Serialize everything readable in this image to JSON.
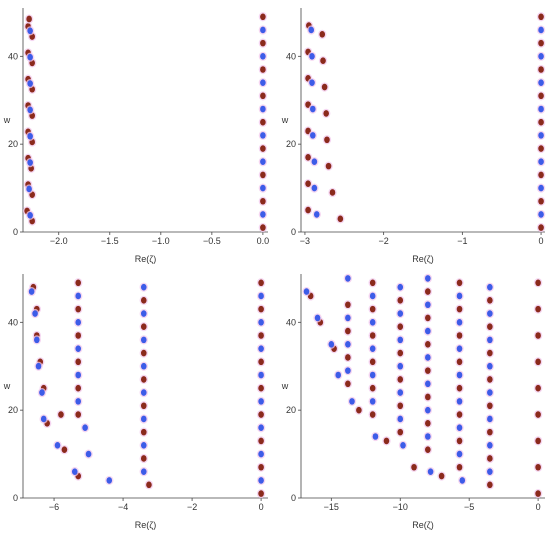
{
  "colors": {
    "red": "#8b2a1c",
    "blue": "#3d5ce8",
    "halo": "#f2c8ec",
    "axis": "#444444"
  },
  "chart_data": [
    {
      "type": "scatter",
      "title": "",
      "xlabel": "Re(ζ)",
      "ylabel": "w",
      "xlim": [
        -2.35,
        0.05
      ],
      "ylim": [
        0,
        51
      ],
      "xticks": [
        -2.0,
        -1.5,
        -1.0,
        -0.5,
        0.0
      ],
      "xtick_labels": [
        "−2.0",
        "−1.5",
        "−1.0",
        "−0.5",
        "0.0"
      ],
      "yticks": [
        0,
        20,
        40
      ],
      "ytick_labels": [
        "0",
        "20",
        "40"
      ],
      "grid": false,
      "series": [
        {
          "color": "red",
          "points": [
            [
              -2.26,
              2.5
            ],
            [
              -2.26,
              8.5
            ],
            [
              -2.27,
              14.5
            ],
            [
              -2.26,
              20.5
            ],
            [
              -2.26,
              26.5
            ],
            [
              -2.26,
              32.5
            ],
            [
              -2.26,
              38.5
            ],
            [
              -2.26,
              44.5
            ],
            [
              -2.31,
              4.8
            ],
            [
              -2.3,
              10.8
            ],
            [
              -2.3,
              16.8
            ],
            [
              -2.3,
              22.8
            ],
            [
              -2.3,
              28.8
            ],
            [
              -2.3,
              34.8
            ],
            [
              -2.3,
              40.8
            ],
            [
              -2.3,
              46.8
            ],
            [
              -2.29,
              48.5
            ],
            [
              0,
              1
            ],
            [
              0,
              7
            ],
            [
              0,
              13
            ],
            [
              0,
              19
            ],
            [
              0,
              25
            ],
            [
              0,
              31
            ],
            [
              0,
              37
            ],
            [
              0,
              43
            ],
            [
              0,
              49
            ]
          ]
        },
        {
          "color": "blue",
          "points": [
            [
              -2.28,
              3.8
            ],
            [
              -2.29,
              9.8
            ],
            [
              -2.28,
              15.8
            ],
            [
              -2.28,
              21.8
            ],
            [
              -2.28,
              27.8
            ],
            [
              -2.28,
              33.8
            ],
            [
              -2.28,
              39.8
            ],
            [
              -2.28,
              45.8
            ],
            [
              0,
              4
            ],
            [
              0,
              10
            ],
            [
              0,
              16
            ],
            [
              0,
              22
            ],
            [
              0,
              28
            ],
            [
              0,
              34
            ],
            [
              0,
              40
            ],
            [
              0,
              46
            ]
          ]
        }
      ]
    },
    {
      "type": "scatter",
      "title": "",
      "xlabel": "Re(ζ)",
      "ylabel": "w",
      "xlim": [
        -3.05,
        0.05
      ],
      "ylim": [
        0,
        51
      ],
      "xticks": [
        -3,
        -2,
        -1,
        0
      ],
      "xtick_labels": [
        "−3",
        "−2",
        "−1",
        "0"
      ],
      "yticks": [
        0,
        20,
        40
      ],
      "ytick_labels": [
        "0",
        "20",
        "40"
      ],
      "grid": false,
      "series": [
        {
          "color": "red",
          "points": [
            [
              -2.55,
              3
            ],
            [
              -2.65,
              9
            ],
            [
              -2.7,
              15
            ],
            [
              -2.72,
              21
            ],
            [
              -2.73,
              27
            ],
            [
              -2.75,
              33
            ],
            [
              -2.77,
              39
            ],
            [
              -2.78,
              45
            ],
            [
              -2.96,
              5
            ],
            [
              -2.96,
              11
            ],
            [
              -2.96,
              17
            ],
            [
              -2.96,
              23
            ],
            [
              -2.96,
              29
            ],
            [
              -2.96,
              35
            ],
            [
              -2.96,
              41
            ],
            [
              -2.95,
              47
            ],
            [
              0,
              1
            ],
            [
              0,
              7
            ],
            [
              0,
              13
            ],
            [
              0,
              19
            ],
            [
              0,
              25
            ],
            [
              0,
              31
            ],
            [
              0,
              37
            ],
            [
              0,
              43
            ],
            [
              0,
              49
            ]
          ]
        },
        {
          "color": "blue",
          "points": [
            [
              -2.85,
              4
            ],
            [
              -2.88,
              10
            ],
            [
              -2.88,
              16
            ],
            [
              -2.9,
              22
            ],
            [
              -2.9,
              28
            ],
            [
              -2.91,
              34
            ],
            [
              -2.91,
              40
            ],
            [
              -2.92,
              46
            ],
            [
              0,
              4
            ],
            [
              0,
              10
            ],
            [
              0,
              16
            ],
            [
              0,
              22
            ],
            [
              0,
              28
            ],
            [
              0,
              34
            ],
            [
              0,
              40
            ],
            [
              0,
              46
            ]
          ]
        }
      ]
    },
    {
      "type": "scatter",
      "title": "",
      "xlabel": "Re(ζ)",
      "ylabel": "w",
      "xlim": [
        -6.9,
        0.2
      ],
      "ylim": [
        0,
        51
      ],
      "xticks": [
        -6,
        -4,
        -2,
        0
      ],
      "xtick_labels": [
        "−6",
        "−4",
        "−2",
        "0"
      ],
      "yticks": [
        0,
        20,
        40
      ],
      "ytick_labels": [
        "0",
        "20",
        "40"
      ],
      "grid": false,
      "series": [
        {
          "color": "red",
          "points": [
            [
              -3.25,
              3
            ],
            [
              -3.4,
              9
            ],
            [
              -3.4,
              15
            ],
            [
              -3.4,
              21
            ],
            [
              -3.4,
              27
            ],
            [
              -3.4,
              33
            ],
            [
              -3.4,
              39
            ],
            [
              -3.4,
              45
            ],
            [
              -5.3,
              5
            ],
            [
              -5.3,
              19
            ],
            [
              -5.3,
              25
            ],
            [
              -5.3,
              31
            ],
            [
              -5.3,
              37
            ],
            [
              -5.3,
              43
            ],
            [
              -5.3,
              49
            ],
            [
              -5.7,
              11
            ],
            [
              -5.8,
              19
            ],
            [
              -6.2,
              17
            ],
            [
              -6.3,
              25
            ],
            [
              -6.4,
              31
            ],
            [
              -6.5,
              37
            ],
            [
              -6.5,
              43
            ],
            [
              -6.6,
              48
            ],
            [
              0,
              1
            ],
            [
              0,
              7
            ],
            [
              0,
              13
            ],
            [
              0,
              19
            ],
            [
              0,
              25
            ],
            [
              0,
              31
            ],
            [
              0,
              37
            ],
            [
              0,
              43
            ],
            [
              0,
              49
            ]
          ]
        },
        {
          "color": "blue",
          "points": [
            [
              -3.4,
              6
            ],
            [
              -3.4,
              12
            ],
            [
              -3.4,
              18
            ],
            [
              -3.4,
              24
            ],
            [
              -3.4,
              30
            ],
            [
              -3.4,
              36
            ],
            [
              -3.4,
              42
            ],
            [
              -3.4,
              48
            ],
            [
              -4.4,
              4
            ],
            [
              -5.0,
              10
            ],
            [
              -5.1,
              16
            ],
            [
              -5.4,
              6
            ],
            [
              -5.3,
              22
            ],
            [
              -5.3,
              28
            ],
            [
              -5.3,
              34
            ],
            [
              -5.3,
              40
            ],
            [
              -5.3,
              46
            ],
            [
              -5.9,
              12
            ],
            [
              -6.3,
              18
            ],
            [
              -6.35,
              24
            ],
            [
              -6.45,
              30
            ],
            [
              -6.5,
              36
            ],
            [
              -6.55,
              42
            ],
            [
              -6.65,
              47
            ],
            [
              0,
              4
            ],
            [
              0,
              10
            ],
            [
              0,
              16
            ],
            [
              0,
              22
            ],
            [
              0,
              28
            ],
            [
              0,
              34
            ],
            [
              0,
              40
            ],
            [
              0,
              46
            ]
          ]
        }
      ]
    },
    {
      "type": "scatter",
      "title": "",
      "xlabel": "Re(ζ)",
      "ylabel": "w",
      "xlim": [
        -17.2,
        0.5
      ],
      "ylim": [
        0,
        51
      ],
      "xticks": [
        -15,
        -10,
        -5,
        0
      ],
      "xtick_labels": [
        "−15",
        "−10",
        "−5",
        "0"
      ],
      "yticks": [
        0,
        20,
        40
      ],
      "ytick_labels": [
        "0",
        "20",
        "40"
      ],
      "grid": false,
      "series": [
        {
          "color": "red",
          "points": [
            [
              -3.5,
              3
            ],
            [
              -3.5,
              9
            ],
            [
              -3.5,
              15
            ],
            [
              -3.5,
              21
            ],
            [
              -3.5,
              27
            ],
            [
              -3.5,
              33
            ],
            [
              -3.5,
              39
            ],
            [
              -3.5,
              45
            ],
            [
              -5.7,
              7
            ],
            [
              -5.7,
              13
            ],
            [
              -5.7,
              19
            ],
            [
              -5.7,
              25
            ],
            [
              -5.7,
              31
            ],
            [
              -5.7,
              37
            ],
            [
              -5.7,
              43
            ],
            [
              -5.7,
              49
            ],
            [
              -7.0,
              5
            ],
            [
              -8.0,
              11
            ],
            [
              -8.0,
              17
            ],
            [
              -8.0,
              23
            ],
            [
              -8.0,
              29
            ],
            [
              -8.0,
              35
            ],
            [
              -8.0,
              41
            ],
            [
              -8.0,
              47
            ],
            [
              -9.0,
              7
            ],
            [
              -10.0,
              15
            ],
            [
              -10.0,
              21
            ],
            [
              -10.0,
              27
            ],
            [
              -10.0,
              33
            ],
            [
              -10.0,
              39
            ],
            [
              -10.0,
              45
            ],
            [
              -11.0,
              13
            ],
            [
              -12.0,
              19
            ],
            [
              -12.0,
              25
            ],
            [
              -12.0,
              31
            ],
            [
              -12.0,
              37
            ],
            [
              -12.0,
              43
            ],
            [
              -12.0,
              49
            ],
            [
              -13.0,
              20
            ],
            [
              -13.8,
              26
            ],
            [
              -13.8,
              32
            ],
            [
              -13.8,
              38
            ],
            [
              -13.8,
              44
            ],
            [
              -14.8,
              34
            ],
            [
              -15.8,
              40
            ],
            [
              -16.5,
              46
            ],
            [
              0,
              1
            ],
            [
              0,
              7
            ],
            [
              0,
              13
            ],
            [
              0,
              19
            ],
            [
              0,
              25
            ],
            [
              0,
              31
            ],
            [
              0,
              37
            ],
            [
              0,
              43
            ],
            [
              0,
              49
            ]
          ]
        },
        {
          "color": "blue",
          "points": [
            [
              -3.5,
              6
            ],
            [
              -3.5,
              12
            ],
            [
              -3.5,
              18
            ],
            [
              -3.5,
              24
            ],
            [
              -3.5,
              30
            ],
            [
              -3.5,
              36
            ],
            [
              -3.5,
              42
            ],
            [
              -3.5,
              48
            ],
            [
              -5.5,
              4
            ],
            [
              -5.7,
              10
            ],
            [
              -5.7,
              16
            ],
            [
              -5.7,
              22
            ],
            [
              -5.7,
              28
            ],
            [
              -5.7,
              34
            ],
            [
              -5.7,
              40
            ],
            [
              -5.7,
              46
            ],
            [
              -7.8,
              6
            ],
            [
              -8.0,
              14
            ],
            [
              -8.0,
              20
            ],
            [
              -8.0,
              26
            ],
            [
              -8.0,
              32
            ],
            [
              -8.0,
              38
            ],
            [
              -8.0,
              44
            ],
            [
              -8.0,
              50
            ],
            [
              -9.8,
              12
            ],
            [
              -10.0,
              18
            ],
            [
              -10.0,
              24
            ],
            [
              -10.0,
              30
            ],
            [
              -10.0,
              36
            ],
            [
              -10.0,
              42
            ],
            [
              -10.0,
              48
            ],
            [
              -11.8,
              14
            ],
            [
              -12.0,
              22
            ],
            [
              -12.0,
              28
            ],
            [
              -12.0,
              34
            ],
            [
              -12.0,
              40
            ],
            [
              -12.0,
              46
            ],
            [
              -13.5,
              22
            ],
            [
              -13.8,
              29
            ],
            [
              -13.8,
              35
            ],
            [
              -13.8,
              41
            ],
            [
              -13.8,
              50
            ],
            [
              -14.5,
              28
            ],
            [
              -15.0,
              35
            ],
            [
              -16.0,
              41
            ],
            [
              -16.8,
              47
            ]
          ]
        }
      ]
    }
  ]
}
